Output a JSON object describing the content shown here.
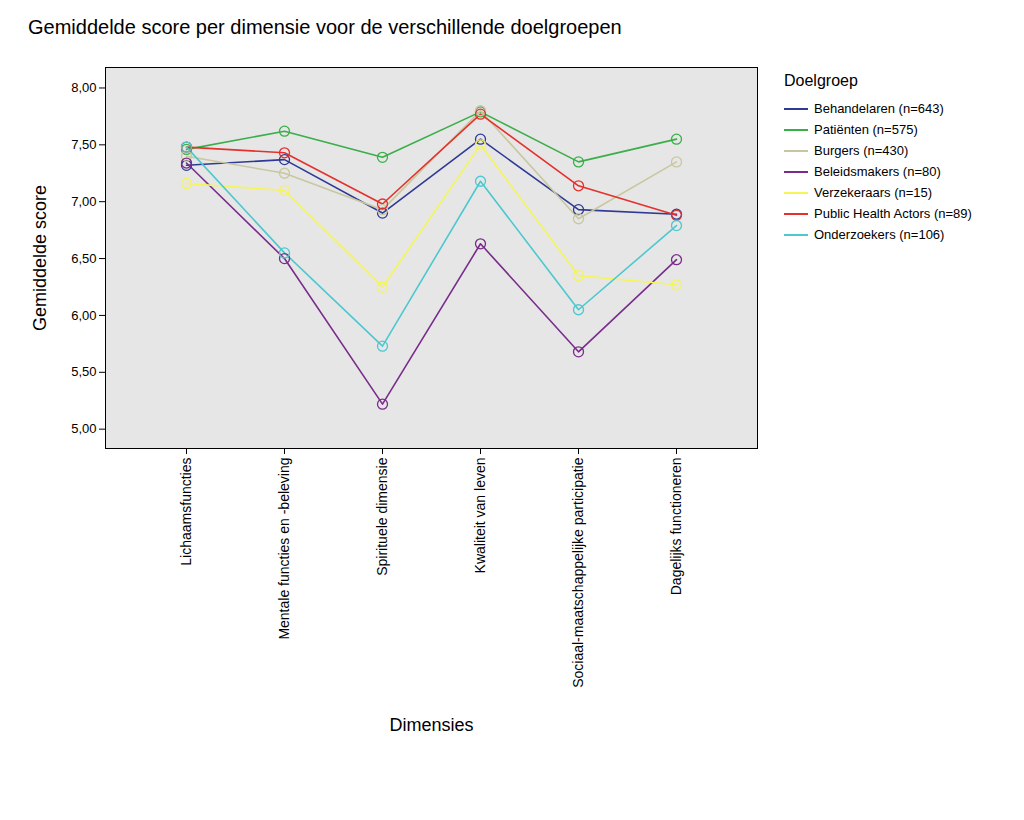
{
  "chart_data": {
    "type": "line",
    "title": "Gemiddelde score per dimensie voor de verschillende doelgroepen",
    "x_label": "Dimensies",
    "y_label": "Gemiddelde score",
    "legend_title": "Doelgroep",
    "legend": "right",
    "grid": false,
    "marker": "circle",
    "line_style": "solid",
    "categories": [
      "Lichaamsfuncties",
      "Mentale functies en -beleving",
      "Spirituele dimensie",
      "Kwaliteit van leven",
      "Sociaal-maatschappelijke participatie",
      "Dagelijks functioneren"
    ],
    "ylim": [
      4.83,
      8.18
    ],
    "yticks": [
      {
        "value": 5.0,
        "label": "5,00"
      },
      {
        "value": 5.5,
        "label": "5,50"
      },
      {
        "value": 6.0,
        "label": "6,00"
      },
      {
        "value": 6.5,
        "label": "6,50"
      },
      {
        "value": 7.0,
        "label": "7,00"
      },
      {
        "value": 7.5,
        "label": "7,50"
      },
      {
        "value": 8.0,
        "label": "8,00"
      }
    ],
    "series": [
      {
        "name": "Behandelaren (n=643)",
        "color": "#2e3a94",
        "values": [
          7.32,
          7.37,
          6.9,
          7.55,
          6.93,
          6.89
        ]
      },
      {
        "name": "Patiënten (n=575)",
        "color": "#3aae48",
        "values": [
          7.46,
          7.62,
          7.39,
          7.79,
          7.35,
          7.55
        ]
      },
      {
        "name": "Burgers (n=430)",
        "color": "#c9c79f",
        "values": [
          7.4,
          7.25,
          6.93,
          7.8,
          6.85,
          7.35
        ]
      },
      {
        "name": "Beleidsmakers (n=80)",
        "color": "#7a2c8c",
        "values": [
          7.34,
          6.5,
          5.22,
          6.63,
          5.68,
          6.49
        ]
      },
      {
        "name": "Verzekeraars (n=15)",
        "color": "#f5f55a",
        "values": [
          7.16,
          7.1,
          6.25,
          7.5,
          6.35,
          6.27
        ]
      },
      {
        "name": "Public Health Actors (n=89)",
        "color": "#e4312d",
        "values": [
          7.48,
          7.43,
          6.98,
          7.77,
          7.14,
          6.88
        ]
      },
      {
        "name": "Onderzoekers (n=106)",
        "color": "#4cc8cf",
        "values": [
          7.48,
          6.55,
          5.73,
          7.18,
          6.05,
          6.79
        ]
      }
    ]
  }
}
